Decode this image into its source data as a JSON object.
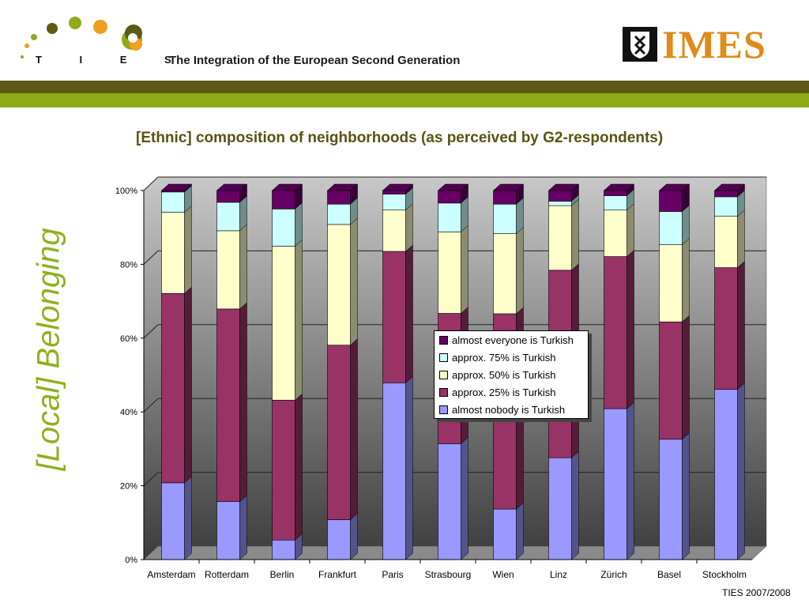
{
  "header": {
    "logo_text": "T I E S",
    "title": "The Integration of the European Second Generation",
    "partner_logo_text": "IMES"
  },
  "side_title": "[Local] Belonging",
  "footer": "TIES 2007/2008",
  "colors": {
    "band_dark": "#5c5a14",
    "band_light": "#8fab1a",
    "almost_nobody": "#9999ff",
    "approx_25": "#993366",
    "approx_50": "#ffffcc",
    "approx_75": "#ccffff",
    "almost_everyone": "#660066"
  },
  "chart_data": {
    "type": "bar",
    "stacked": true,
    "title": "[Ethnic] composition of neighborhoods (as perceived by G2-respondents)",
    "categories": [
      "Amsterdam",
      "Rotterdam",
      "Berlin",
      "Frankfurt",
      "Paris",
      "Strasbourg",
      "Wien",
      "Linz",
      "Zürich",
      "Basel",
      "Stockholm"
    ],
    "y_ticks": [
      "0%",
      "20%",
      "40%",
      "60%",
      "80%",
      "100%"
    ],
    "ylim": [
      0,
      100
    ],
    "grid": true,
    "legend_position": "center-right",
    "series": [
      {
        "name": "almost nobody is Turkish",
        "color": "#9999ff",
        "values": [
          20.8,
          15.7,
          5.3,
          10.8,
          47.9,
          31.4,
          13.7,
          27.6,
          40.9,
          32.6,
          46.1
        ]
      },
      {
        "name": "approx. 25% is Turkish",
        "color": "#993366",
        "values": [
          51.3,
          52.2,
          37.9,
          47.3,
          35.6,
          35.3,
          52.9,
          50.8,
          41.2,
          31.8,
          33.0
        ]
      },
      {
        "name": "approx. 50% is Turkish",
        "color": "#ffffcc",
        "values": [
          22.0,
          21.2,
          41.7,
          32.7,
          11.2,
          22.1,
          21.7,
          17.5,
          12.6,
          20.9,
          13.9
        ]
      },
      {
        "name": "approx. 75% is Turkish",
        "color": "#ccffff",
        "values": [
          5.5,
          7.7,
          10.1,
          5.5,
          4.3,
          7.8,
          8.0,
          1.2,
          3.9,
          9.0,
          5.3
        ]
      },
      {
        "name": "almost everyone is Turkish",
        "color": "#660066",
        "values": [
          0.4,
          3.2,
          5.0,
          3.7,
          1.0,
          3.4,
          3.7,
          2.9,
          1.4,
          5.7,
          1.7
        ]
      }
    ]
  }
}
